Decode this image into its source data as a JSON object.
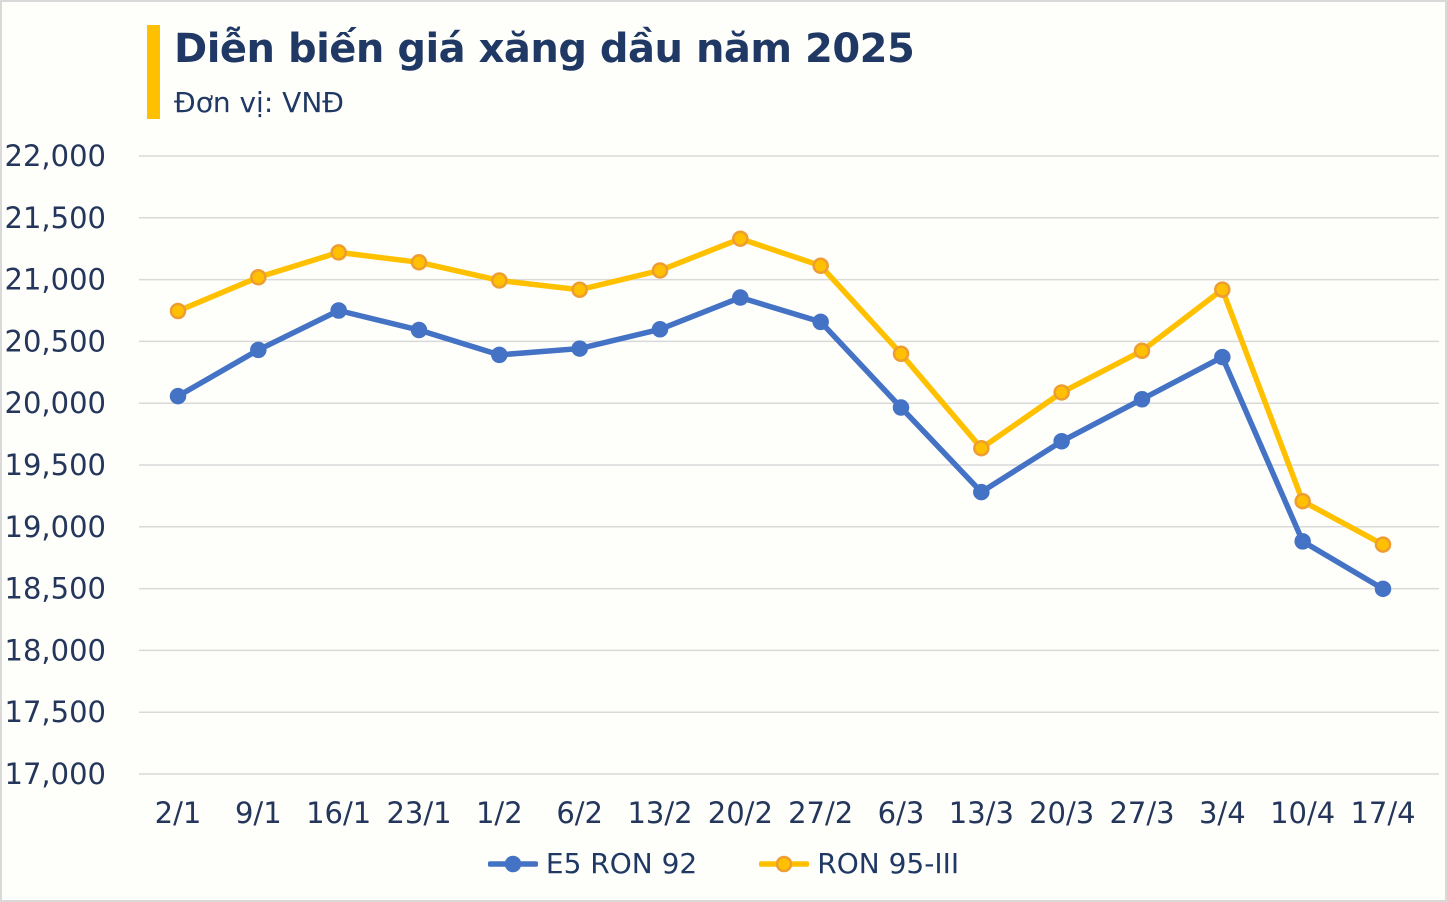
{
  "header": {
    "title": "Diễn biến giá xăng dầu năm 2025",
    "subtitle": "Đơn vị: VNĐ"
  },
  "colors": {
    "accent_bar": "#FFC000",
    "title_text": "#1F3864",
    "axis_text": "#24365B",
    "gridline": "#D9D9D9",
    "page_border": "#D9D9D9",
    "series_e5": "#4472C4",
    "series_ron95": "#FFC000",
    "ron95_marker_stroke": "#ED9D31"
  },
  "legend": {
    "items": [
      "E5 RON 92",
      "RON 95-III"
    ]
  },
  "chart_data": {
    "type": "line",
    "title": "Diễn biến giá xăng dầu năm 2025",
    "unit_label": "Đơn vị: VNĐ",
    "categories": [
      "2/1",
      "9/1",
      "16/1",
      "23/1",
      "1/2",
      "6/2",
      "13/2",
      "20/2",
      "27/2",
      "6/3",
      "13/3",
      "20/3",
      "27/3",
      "3/4",
      "10/4",
      "17/4"
    ],
    "series": [
      {
        "name": "E5 RON 92",
        "color": "#4472C4",
        "marker_stroke": "#4472C4",
        "values": [
          20057,
          20431,
          20750,
          20592,
          20391,
          20442,
          20598,
          20855,
          20658,
          19965,
          19281,
          19692,
          20032,
          20373,
          18882,
          18498
        ]
      },
      {
        "name": "RON 95-III",
        "color": "#FFC000",
        "marker_stroke": "#ED9D31",
        "values": [
          20746,
          21019,
          21220,
          21140,
          20993,
          20918,
          21074,
          21331,
          21112,
          20400,
          19636,
          20087,
          20424,
          20919,
          19207,
          18856
        ]
      }
    ],
    "ylim": [
      17000,
      22000
    ],
    "yticks": [
      {
        "value": 17000,
        "label": "17,000"
      },
      {
        "value": 17500,
        "label": "17,500"
      },
      {
        "value": 18000,
        "label": "18,000"
      },
      {
        "value": 18500,
        "label": "18,500"
      },
      {
        "value": 19000,
        "label": "19,000"
      },
      {
        "value": 19500,
        "label": "19,500"
      },
      {
        "value": 20000,
        "label": "20,000"
      },
      {
        "value": 20500,
        "label": "20,500"
      },
      {
        "value": 21000,
        "label": "21,000"
      },
      {
        "value": 21500,
        "label": "21,500"
      },
      {
        "value": 22000,
        "label": "22,000"
      }
    ],
    "grid": "horizontal",
    "legend_position": "bottom"
  }
}
